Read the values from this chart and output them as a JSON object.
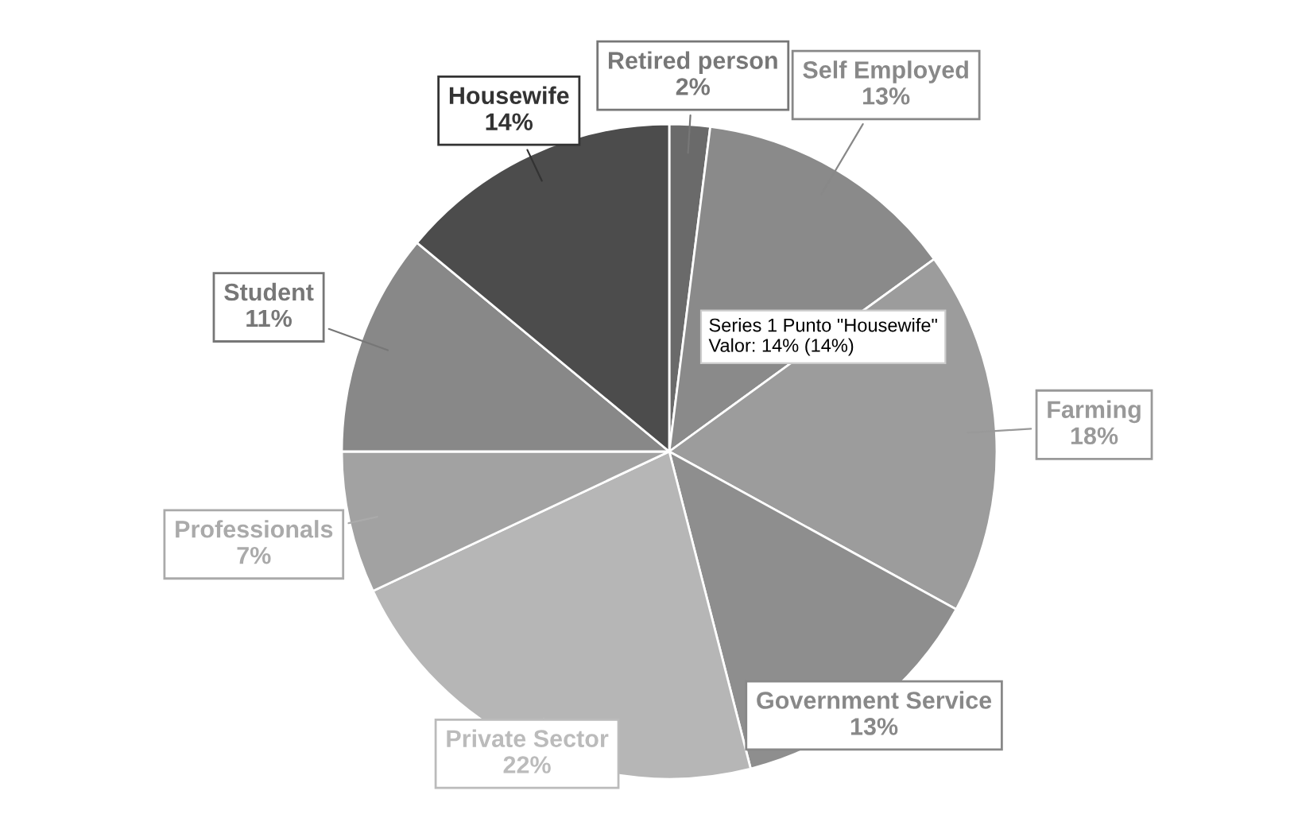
{
  "chart_data": {
    "type": "pie",
    "categories": [
      "Retired person",
      "Self Employed",
      "Farming",
      "Government Service",
      "Private Sector",
      "Professionals",
      "Student",
      "Housewife"
    ],
    "values": [
      2,
      13,
      18,
      13,
      22,
      7,
      11,
      14
    ],
    "value_labels": [
      "2%",
      "13%",
      "18%",
      "13%",
      "22%",
      "7%",
      "11%",
      "14%"
    ],
    "colors": [
      "#6a6a6a",
      "#8a8a8a",
      "#9c9c9c",
      "#8e8e8e",
      "#b6b6b6",
      "#a2a2a2",
      "#888888",
      "#4c4c4c"
    ],
    "annotations": [
      "Series 1 Punto \"Housewife\"\nValor: 14% (14%)"
    ],
    "legend": false
  }
}
